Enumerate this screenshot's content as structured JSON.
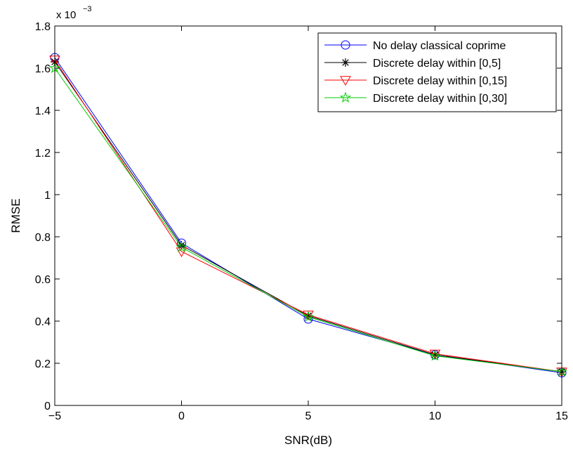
{
  "chart_data": {
    "type": "line",
    "xlabel": "SNR(dB)",
    "ylabel": "RMSE",
    "y_multiplier_label": "x 10",
    "y_multiplier_exponent": "−3",
    "xlim": [
      -5,
      15
    ],
    "ylim": [
      0,
      1.8
    ],
    "x_ticks": [
      -5,
      0,
      5,
      10,
      15
    ],
    "x_tick_labels": [
      "−5",
      "0",
      "5",
      "10",
      "15"
    ],
    "y_ticks": [
      0,
      0.2,
      0.4,
      0.6,
      0.8,
      1,
      1.2,
      1.4,
      1.6,
      1.8
    ],
    "y_tick_labels": [
      "0",
      "0.2",
      "0.4",
      "0.6",
      "0.8",
      "1",
      "1.2",
      "1.4",
      "1.6",
      "1.8"
    ],
    "grid": false,
    "legend_position": "top-right",
    "x": [
      -5,
      0,
      5,
      10,
      15
    ],
    "series": [
      {
        "name": "No delay classical coprime",
        "color": "#0000ff",
        "marker": "circle",
        "values": [
          1.65,
          0.77,
          0.41,
          0.24,
          0.155
        ]
      },
      {
        "name": "Discrete delay within [0,5]",
        "color": "#000000",
        "marker": "asterisk",
        "values": [
          1.63,
          0.76,
          0.425,
          0.24,
          0.16
        ]
      },
      {
        "name": "Discrete delay within [0,15]",
        "color": "#ff0000",
        "marker": "triangle-down",
        "values": [
          1.64,
          0.73,
          0.43,
          0.245,
          0.16
        ]
      },
      {
        "name": "Discrete delay within [0,30]",
        "color": "#00cc00",
        "marker": "pentagram",
        "values": [
          1.6,
          0.75,
          0.42,
          0.235,
          0.16
        ]
      }
    ]
  }
}
